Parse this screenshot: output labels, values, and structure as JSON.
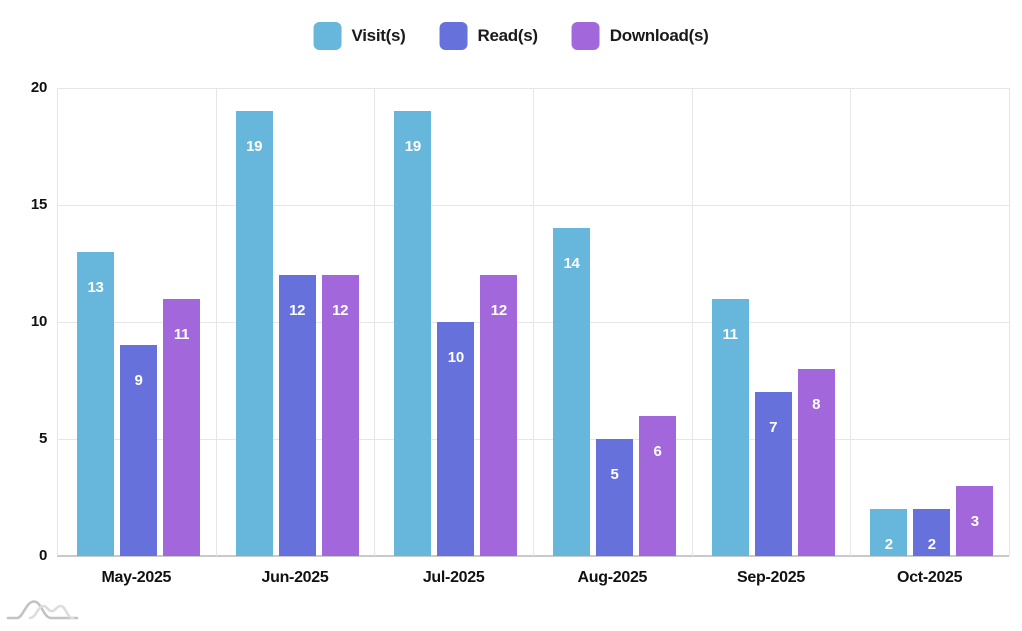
{
  "chart_data": {
    "type": "bar",
    "title": "",
    "categories": [
      "May-2025",
      "Jun-2025",
      "Jul-2025",
      "Aug-2025",
      "Sep-2025",
      "Oct-2025"
    ],
    "series": [
      {
        "name": "Visit(s)",
        "color": "#67b7dc",
        "values": [
          13,
          19,
          19,
          14,
          11,
          2
        ]
      },
      {
        "name": "Read(s)",
        "color": "#6771dc",
        "values": [
          9,
          12,
          10,
          5,
          7,
          2
        ]
      },
      {
        "name": "Download(s)",
        "color": "#a367dc",
        "values": [
          11,
          12,
          12,
          6,
          8,
          3
        ]
      }
    ],
    "xlabel": "",
    "ylabel": "",
    "ylim": [
      0,
      20
    ],
    "yticks": [
      0,
      5,
      10,
      15,
      20
    ],
    "grid": true,
    "legend_position": "top-center",
    "bar_value_labels": {
      "visible": true,
      "color": "#ffffff",
      "placement": "inside-below-top"
    }
  },
  "colors": {
    "background": "#ffffff",
    "gridline": "#e6e6e6",
    "axis_line": "#c9c9c9",
    "tick_label": "#111111",
    "legend_label": "#1a1a1a"
  },
  "watermark": {
    "icon": "amcharts-waves-logo"
  }
}
